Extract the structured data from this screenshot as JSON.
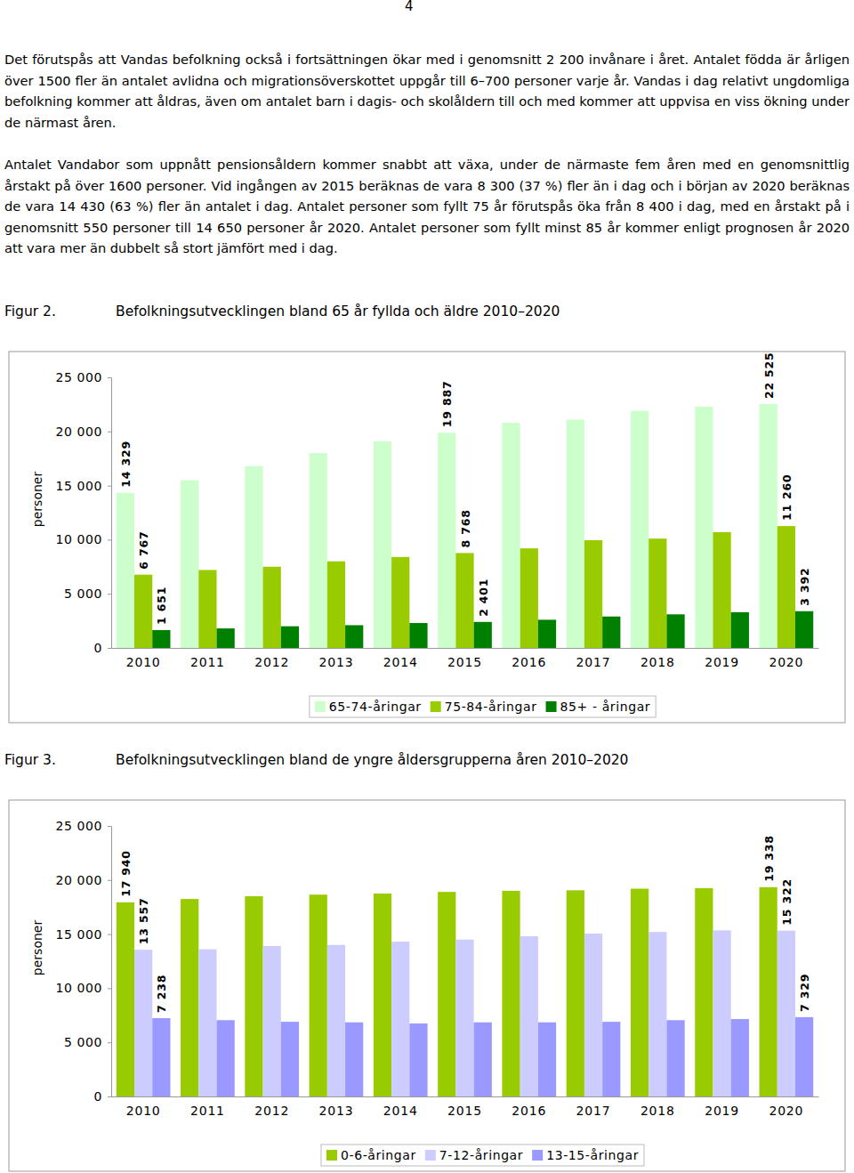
{
  "page_number": "4",
  "paragraphs": [
    "Det förutspås att Vandas befolkning också i fortsättningen ökar med i genomsnitt 2 200 invånare i året. Antalet födda är årligen över 1500 fler än antalet avlidna och migrationsöverskottet uppgår till 6–700 personer varje år. Vandas i dag relativt ungdomliga befolkning kommer att åldras, även om antalet barn i dagis- och skolåldern till och med kommer att uppvisa en viss ökning under de närmast åren.",
    "Antalet Vandabor som uppnått pensionsåldern kommer snabbt att växa, under de närmaste fem åren med en genomsnittlig årstakt på över 1600 personer. Vid ingången av 2015 beräknas de vara 8 300 (37 %) fler än i dag och i början av 2020 beräknas de vara 14 430 (63 %) fler än antalet i dag. Antalet personer som fyllt 75 år förutspås öka från 8 400 i dag, med en årstakt på i genomsnitt 550 personer till 14 650 personer år 2020. Antalet personer som fyllt minst 85 år kommer enligt prognosen år 2020 att vara mer än dubbelt så stort jämfört med i dag."
  ],
  "figures": [
    {
      "label": "Figur 2.",
      "caption": "Befolkningsutvecklingen bland 65 år fyllda och äldre 2010–2020"
    },
    {
      "label": "Figur 3.",
      "caption": "Befolkningsutvecklingen bland de yngre åldersgrupperna åren 2010–2020"
    }
  ],
  "chart_data": [
    {
      "type": "bar",
      "categories": [
        "2010",
        "2011",
        "2012",
        "2013",
        "2014",
        "2015",
        "2016",
        "2017",
        "2018",
        "2019",
        "2020"
      ],
      "y_label": "personer",
      "ylim": [
        0,
        25000
      ],
      "yticks": [
        0,
        {
          "value": 5000,
          "label": "5 000"
        },
        {
          "value": 10000,
          "label": "10 000"
        },
        {
          "value": 15000,
          "label": "15 000"
        },
        {
          "value": 20000,
          "label": "20 000"
        },
        {
          "value": 25000,
          "label": "25 000"
        }
      ],
      "data_labels": true,
      "legend": "bottom",
      "series": [
        {
          "name": "65-74-åringar",
          "color": "#ccffcc",
          "values": [
            14329,
            15500,
            16800,
            18000,
            19100,
            19887,
            20800,
            21100,
            21900,
            22300,
            22525
          ],
          "value_labels": [
            "14 329",
            null,
            null,
            null,
            null,
            "19 887",
            null,
            null,
            null,
            null,
            "22 525"
          ]
        },
        {
          "name": "75-84-åringar",
          "color": "#99cc00",
          "values": [
            6767,
            7200,
            7500,
            8000,
            8400,
            8768,
            9200,
            9950,
            10100,
            10700,
            11260
          ],
          "value_labels": [
            "6 767",
            null,
            null,
            null,
            null,
            "8 768",
            null,
            null,
            null,
            null,
            "11 260"
          ]
        },
        {
          "name": "85+ - åringar",
          "color": "#008000",
          "values": [
            1651,
            1800,
            2000,
            2100,
            2300,
            2401,
            2600,
            2900,
            3100,
            3300,
            3392
          ],
          "value_labels": [
            "1 651",
            null,
            null,
            null,
            null,
            "2 401",
            null,
            null,
            null,
            null,
            "3 392"
          ]
        }
      ]
    },
    {
      "type": "bar",
      "categories": [
        "2010",
        "2011",
        "2012",
        "2013",
        "2014",
        "2015",
        "2016",
        "2017",
        "2018",
        "2019",
        "2020"
      ],
      "y_label": "personer",
      "ylim": [
        0,
        25000
      ],
      "yticks": [
        0,
        {
          "value": 5000,
          "label": "5 000"
        },
        {
          "value": 10000,
          "label": "10 000"
        },
        {
          "value": 15000,
          "label": "15 000"
        },
        {
          "value": 20000,
          "label": "20 000"
        },
        {
          "value": 25000,
          "label": "25 000"
        }
      ],
      "data_labels": true,
      "legend": "bottom",
      "series": [
        {
          "name": "0-6-åringar",
          "color": "#99cc00",
          "values": [
            17940,
            18250,
            18500,
            18650,
            18750,
            18900,
            19000,
            19050,
            19200,
            19250,
            19338
          ],
          "value_labels": [
            "17 940",
            null,
            null,
            null,
            null,
            null,
            null,
            null,
            null,
            null,
            "19 338"
          ]
        },
        {
          "name": "7-12-åringar",
          "color": "#ccccff",
          "values": [
            13557,
            13600,
            13900,
            14000,
            14300,
            14500,
            14800,
            15050,
            15200,
            15350,
            15322
          ],
          "value_labels": [
            "13 557",
            null,
            null,
            null,
            null,
            null,
            null,
            null,
            null,
            null,
            "15 322"
          ]
        },
        {
          "name": "13-15-åringar",
          "color": "#9999ff",
          "values": [
            7238,
            7050,
            6900,
            6850,
            6750,
            6850,
            6850,
            6900,
            7050,
            7150,
            7329
          ],
          "value_labels": [
            "7 238",
            null,
            null,
            null,
            null,
            null,
            null,
            null,
            null,
            null,
            "7 329"
          ]
        }
      ]
    }
  ]
}
